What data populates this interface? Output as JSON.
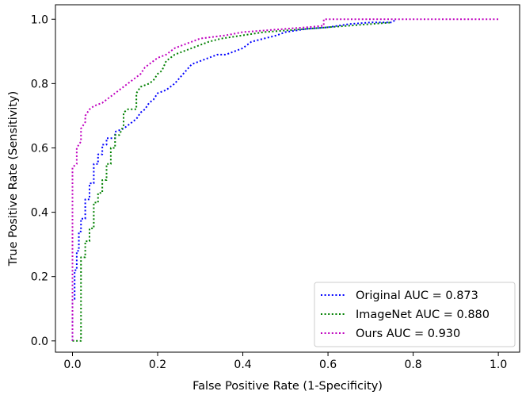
{
  "chart_data": {
    "type": "line",
    "xlabel": "False Positive Rate (1-Specificity)",
    "ylabel": "True Positive Rate (Sensitivity)",
    "xlim": [
      -0.04,
      1.05
    ],
    "ylim": [
      -0.035,
      1.045
    ],
    "xticks": [
      "0.0",
      "0.2",
      "0.4",
      "0.6",
      "0.8",
      "1.0"
    ],
    "yticks": [
      "0.0",
      "0.2",
      "0.4",
      "0.6",
      "0.8",
      "1.0"
    ],
    "grid": false,
    "legend_position": "lower-right",
    "series": [
      {
        "name": "Original AUC = 0.873",
        "color": "#0000ff",
        "x": [
          0.0,
          0.0,
          0.005,
          0.005,
          0.01,
          0.01,
          0.015,
          0.015,
          0.02,
          0.02,
          0.03,
          0.03,
          0.04,
          0.04,
          0.05,
          0.05,
          0.06,
          0.06,
          0.07,
          0.07,
          0.08,
          0.08,
          0.1,
          0.1,
          0.12,
          0.14,
          0.15,
          0.16,
          0.17,
          0.18,
          0.19,
          0.2,
          0.22,
          0.24,
          0.26,
          0.28,
          0.3,
          0.32,
          0.34,
          0.36,
          0.38,
          0.4,
          0.42,
          0.45,
          0.48,
          0.5,
          0.55,
          0.6,
          0.65,
          0.7,
          0.75,
          0.76
        ],
        "y": [
          0.0,
          0.13,
          0.13,
          0.22,
          0.22,
          0.28,
          0.28,
          0.34,
          0.34,
          0.38,
          0.38,
          0.44,
          0.44,
          0.49,
          0.49,
          0.55,
          0.55,
          0.58,
          0.58,
          0.61,
          0.61,
          0.63,
          0.63,
          0.65,
          0.66,
          0.68,
          0.69,
          0.71,
          0.72,
          0.74,
          0.75,
          0.77,
          0.78,
          0.8,
          0.83,
          0.86,
          0.87,
          0.88,
          0.89,
          0.89,
          0.9,
          0.91,
          0.93,
          0.94,
          0.95,
          0.96,
          0.97,
          0.975,
          0.985,
          0.99,
          0.99,
          1.0
        ]
      },
      {
        "name": "ImageNet AUC = 0.880",
        "color": "#008000",
        "x": [
          0.0,
          0.02,
          0.02,
          0.03,
          0.03,
          0.04,
          0.04,
          0.05,
          0.05,
          0.06,
          0.06,
          0.07,
          0.07,
          0.08,
          0.08,
          0.09,
          0.09,
          0.1,
          0.1,
          0.11,
          0.12,
          0.12,
          0.13,
          0.15,
          0.15,
          0.16,
          0.18,
          0.19,
          0.2,
          0.21,
          0.22,
          0.24,
          0.26,
          0.28,
          0.3,
          0.32,
          0.35,
          0.4,
          0.45,
          0.5,
          0.55,
          0.6,
          0.65,
          0.7,
          0.75
        ],
        "y": [
          0.0,
          0.0,
          0.26,
          0.26,
          0.31,
          0.31,
          0.35,
          0.35,
          0.43,
          0.43,
          0.46,
          0.46,
          0.5,
          0.5,
          0.55,
          0.55,
          0.6,
          0.6,
          0.64,
          0.64,
          0.67,
          0.71,
          0.72,
          0.72,
          0.77,
          0.79,
          0.8,
          0.81,
          0.83,
          0.84,
          0.87,
          0.89,
          0.9,
          0.91,
          0.92,
          0.93,
          0.94,
          0.95,
          0.96,
          0.965,
          0.97,
          0.975,
          0.98,
          0.985,
          0.99
        ]
      },
      {
        "name": "Ours AUC = 0.930",
        "color": "#bf00bf",
        "x": [
          0.0,
          0.0,
          0.01,
          0.01,
          0.02,
          0.02,
          0.03,
          0.03,
          0.04,
          0.05,
          0.07,
          0.08,
          0.09,
          0.1,
          0.12,
          0.13,
          0.14,
          0.15,
          0.16,
          0.17,
          0.18,
          0.19,
          0.2,
          0.22,
          0.24,
          0.26,
          0.28,
          0.3,
          0.33,
          0.36,
          0.4,
          0.45,
          0.5,
          0.55,
          0.59,
          0.59,
          0.65,
          0.7,
          0.8,
          0.9,
          1.0
        ],
        "y": [
          0.0,
          0.54,
          0.55,
          0.6,
          0.62,
          0.66,
          0.68,
          0.7,
          0.72,
          0.73,
          0.74,
          0.75,
          0.76,
          0.77,
          0.79,
          0.8,
          0.81,
          0.82,
          0.83,
          0.85,
          0.86,
          0.87,
          0.88,
          0.89,
          0.91,
          0.92,
          0.93,
          0.94,
          0.945,
          0.95,
          0.96,
          0.965,
          0.97,
          0.975,
          0.98,
          1.0,
          1.0,
          1.0,
          1.0,
          1.0,
          1.0
        ]
      }
    ]
  }
}
